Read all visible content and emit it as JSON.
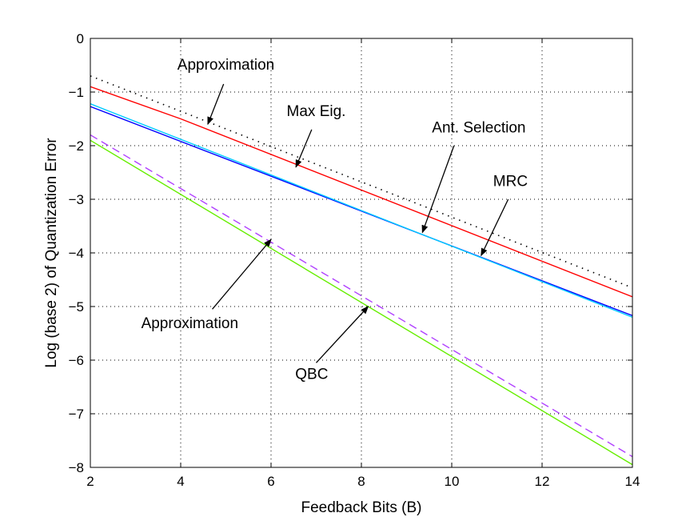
{
  "chart_data": {
    "type": "line",
    "title": "",
    "xlabel": "Feedback Bits (B)",
    "ylabel": "Log (base 2) of Quantization Error",
    "xlim": [
      2,
      14
    ],
    "ylim": [
      -8,
      0
    ],
    "xticks": [
      "2",
      "4",
      "6",
      "8",
      "10",
      "12",
      "14"
    ],
    "yticks": [
      "0",
      "−1",
      "−2",
      "−3",
      "−4",
      "−5",
      "−6",
      "−7",
      "−8"
    ],
    "grid": true,
    "series": [
      {
        "color": "#000000",
        "style": "dotted",
        "x": [
          2,
          14
        ],
        "y": [
          -0.7,
          -4.65
        ]
      },
      {
        "color": "#ff0000",
        "style": "solid",
        "x": [
          2,
          4,
          14
        ],
        "y": [
          -0.9,
          -1.5,
          -4.82
        ]
      },
      {
        "color": "#0000ff",
        "style": "solid",
        "x": [
          2,
          14
        ],
        "y": [
          -1.27,
          -5.17
        ]
      },
      {
        "color": "#00ccff",
        "style": "solid",
        "x": [
          2,
          14
        ],
        "y": [
          -1.22,
          -5.2
        ]
      },
      {
        "color": "#b040ff",
        "style": "dashed",
        "x": [
          2,
          14
        ],
        "y": [
          -1.8,
          -7.8
        ]
      },
      {
        "color": "#66ee00",
        "style": "solid",
        "x": [
          2,
          14
        ],
        "y": [
          -1.9,
          -7.95
        ]
      }
    ],
    "annotations": [
      {
        "text": "Approximation",
        "text_x": 5.0,
        "text_y": -0.58,
        "arrow_from": [
          4.95,
          -0.85
        ],
        "arrow_to": [
          4.6,
          -1.6
        ]
      },
      {
        "text": "Max Eig.",
        "text_x": 7.0,
        "text_y": -1.45,
        "arrow_from": [
          6.9,
          -1.7
        ],
        "arrow_to": [
          6.55,
          -2.4
        ]
      },
      {
        "text": "Ant. Selection",
        "text_x": 10.6,
        "text_y": -1.75,
        "arrow_from": [
          10.05,
          -2.0
        ],
        "arrow_to": [
          9.35,
          -3.62
        ]
      },
      {
        "text": "MRC",
        "text_x": 11.3,
        "text_y": -2.75,
        "arrow_from": [
          11.25,
          -3.0
        ],
        "arrow_to": [
          10.65,
          -4.05
        ]
      },
      {
        "text": "Approximation",
        "text_x": 4.2,
        "text_y": -5.4,
        "arrow_from": [
          4.7,
          -5.05
        ],
        "arrow_to": [
          6.0,
          -3.75
        ]
      },
      {
        "text": "QBC",
        "text_x": 6.9,
        "text_y": -6.35,
        "arrow_from": [
          7.0,
          -6.05
        ],
        "arrow_to": [
          8.15,
          -5.0
        ]
      }
    ]
  }
}
